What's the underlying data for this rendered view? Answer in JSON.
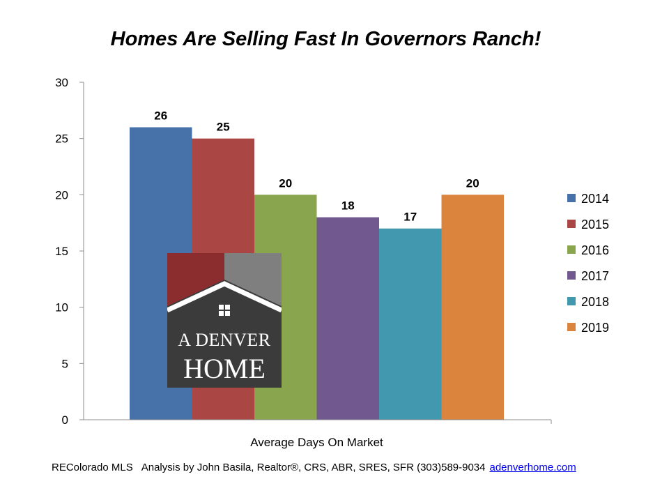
{
  "chart_data": {
    "type": "bar",
    "title": "Homes Are Selling Fast In Governors Ranch!",
    "categories": [
      "Average Days On Market"
    ],
    "series": [
      {
        "name": "2014",
        "values": [
          26
        ],
        "color": "#4672A9"
      },
      {
        "name": "2015",
        "values": [
          25
        ],
        "color": "#AA4744"
      },
      {
        "name": "2016",
        "values": [
          20
        ],
        "color": "#89A54E"
      },
      {
        "name": "2017",
        "values": [
          18
        ],
        "color": "#71588F"
      },
      {
        "name": "2018",
        "values": [
          17
        ],
        "color": "#4198AF"
      },
      {
        "name": "2019",
        "values": [
          20
        ],
        "color": "#DB843D"
      }
    ],
    "ylim": [
      0,
      30
    ],
    "yticks": [
      0,
      5,
      10,
      15,
      20,
      25,
      30
    ],
    "xlabel": "",
    "ylabel": "",
    "grid": false,
    "legend": "right",
    "data_labels": true
  },
  "logo": {
    "line1": "A DENVER",
    "line2": "HOME",
    "colors": {
      "background": "#3b3b3b",
      "left_roof": "#8b2d2f",
      "right_roof": "#7f7f7f",
      "window": "#ffffff"
    }
  },
  "footer": {
    "source": "REColorado MLS",
    "analysis": "Analysis by John Basila, Realtor®, CRS, ABR, SRES, SFR (303)589-9034",
    "link": "adenverhome.com"
  }
}
